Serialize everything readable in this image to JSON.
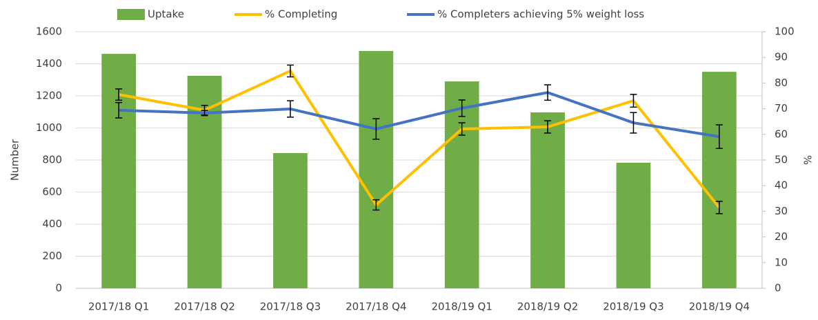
{
  "chart_data": {
    "type": "bar",
    "categories": [
      "2017/18 Q1",
      "2017/18 Q2",
      "2017/18 Q3",
      "2017/18 Q4",
      "2018/19 Q1",
      "2018/19 Q2",
      "2018/19 Q3",
      "2018/19 Q4"
    ],
    "ylabel": "Number",
    "y2label": "%",
    "ylim": [
      0,
      1600
    ],
    "yticks": [
      0,
      200,
      400,
      600,
      800,
      1000,
      1200,
      1400,
      1600
    ],
    "y2lim": [
      0,
      100
    ],
    "y2ticks": [
      0,
      10,
      20,
      30,
      40,
      50,
      60,
      70,
      80,
      90,
      100
    ],
    "grid": true,
    "legend": "top",
    "series": [
      {
        "name": "Uptake",
        "type": "bar",
        "color": "#70ad47",
        "values": [
          1462,
          1325,
          843,
          1480,
          1290,
          1097,
          783,
          1350
        ]
      },
      {
        "name": "% Completing",
        "type": "line",
        "axis": "y2",
        "color": "#ffc000",
        "values": [
          75.5,
          69.4,
          84.7,
          32.5,
          62.1,
          62.9,
          73.1,
          31.5
        ],
        "errors": [
          2.2,
          1.9,
          2.3,
          2,
          2.4,
          2.4,
          2.5,
          2.4
        ]
      },
      {
        "name": "% Completers achieving 5% weight loss",
        "type": "line",
        "axis": "y2",
        "color": "#4472c4",
        "values": [
          69.4,
          68.3,
          69.9,
          62.1,
          70.2,
          76.3,
          64.5,
          59.1
        ],
        "errors": [
          3,
          1,
          3.2,
          4,
          3.2,
          3,
          4,
          4.6
        ]
      }
    ]
  }
}
